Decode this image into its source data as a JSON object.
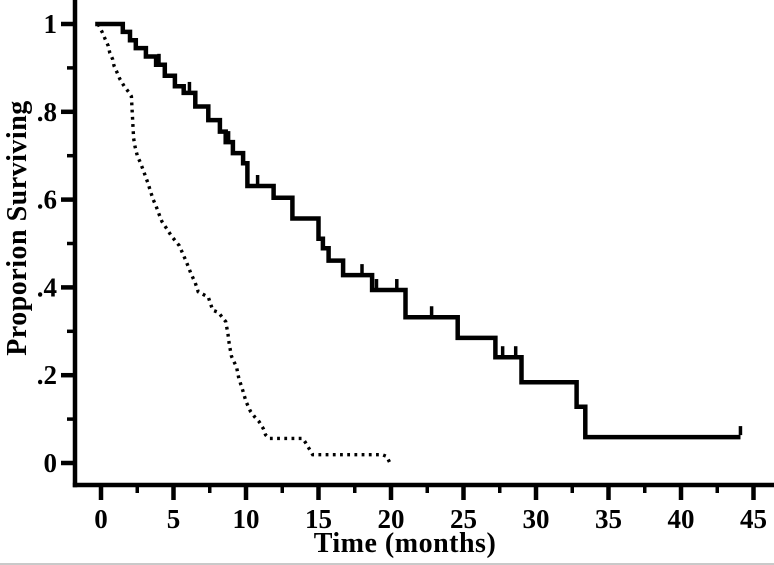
{
  "figure": {
    "background_color": "#ffffff",
    "ink_color": "#000000"
  },
  "chart_data": {
    "type": "line",
    "subtype": "kaplan-meier-survival-step",
    "title": "",
    "xlabel": "Time (months)",
    "ylabel": "Proporion Surviving",
    "grid": false,
    "legend": "none",
    "xlim": [
      -1.8,
      46.4
    ],
    "ylim": [
      -0.05,
      1.05
    ],
    "x_ticks": [
      0,
      5,
      10,
      15,
      20,
      25,
      30,
      35,
      40,
      45
    ],
    "x_minor_ticks": [
      2.5,
      7.5,
      12.5,
      17.5,
      22.5,
      27.5,
      32.5,
      37.5,
      42.5
    ],
    "y_ticks": [
      {
        "value": 1.0,
        "label": "1"
      },
      {
        "value": 0.8,
        "label": ".8"
      },
      {
        "value": 0.6,
        "label": ".6"
      },
      {
        "value": 0.4,
        "label": ".4"
      },
      {
        "value": 0.2,
        "label": ".2"
      },
      {
        "value": 0.0,
        "label": "0"
      }
    ],
    "y_minor_ticks": [
      0.9,
      0.7,
      0.5,
      0.3,
      0.1
    ],
    "series": [
      {
        "name": "solid-curve-group",
        "line_style": "solid",
        "steps": [
          [
            -0.4,
            1.0
          ],
          [
            1.5,
            1.0
          ],
          [
            1.5,
            0.982
          ],
          [
            2.0,
            0.982
          ],
          [
            2.0,
            0.963
          ],
          [
            2.4,
            0.963
          ],
          [
            2.4,
            0.945
          ],
          [
            3.1,
            0.945
          ],
          [
            3.1,
            0.926
          ],
          [
            3.8,
            0.926
          ],
          [
            3.8,
            0.907
          ],
          [
            4.4,
            0.907
          ],
          [
            4.4,
            0.882
          ],
          [
            5.1,
            0.882
          ],
          [
            5.1,
            0.858
          ],
          [
            5.7,
            0.858
          ],
          [
            5.7,
            0.843
          ],
          [
            6.5,
            0.843
          ],
          [
            6.5,
            0.812
          ],
          [
            7.4,
            0.812
          ],
          [
            7.4,
            0.781
          ],
          [
            8.2,
            0.781
          ],
          [
            8.2,
            0.755
          ],
          [
            8.6,
            0.755
          ],
          [
            8.6,
            0.731
          ],
          [
            9.1,
            0.731
          ],
          [
            9.1,
            0.706
          ],
          [
            9.8,
            0.706
          ],
          [
            9.8,
            0.683
          ],
          [
            10.1,
            0.683
          ],
          [
            10.1,
            0.631
          ],
          [
            11.9,
            0.631
          ],
          [
            11.9,
            0.604
          ],
          [
            13.2,
            0.604
          ],
          [
            13.2,
            0.557
          ],
          [
            15.0,
            0.557
          ],
          [
            15.0,
            0.511
          ],
          [
            15.3,
            0.511
          ],
          [
            15.3,
            0.489
          ],
          [
            15.7,
            0.489
          ],
          [
            15.7,
            0.461
          ],
          [
            16.7,
            0.461
          ],
          [
            16.7,
            0.428
          ],
          [
            18.7,
            0.428
          ],
          [
            18.7,
            0.394
          ],
          [
            21.0,
            0.394
          ],
          [
            21.0,
            0.332
          ],
          [
            24.6,
            0.332
          ],
          [
            24.6,
            0.285
          ],
          [
            27.2,
            0.285
          ],
          [
            27.2,
            0.241
          ],
          [
            29.0,
            0.241
          ],
          [
            29.0,
            0.184
          ],
          [
            32.8,
            0.184
          ],
          [
            32.8,
            0.128
          ],
          [
            33.4,
            0.128
          ],
          [
            33.4,
            0.059
          ],
          [
            44.1,
            0.059
          ]
        ],
        "censor_marks": [
          [
            4.0,
            0.907
          ],
          [
            6.1,
            0.843
          ],
          [
            8.8,
            0.731
          ],
          [
            10.8,
            0.631
          ],
          [
            18.0,
            0.428
          ],
          [
            19.0,
            0.394
          ],
          [
            20.4,
            0.394
          ],
          [
            22.8,
            0.332
          ],
          [
            27.7,
            0.241
          ],
          [
            28.6,
            0.241
          ],
          [
            44.1,
            0.059
          ]
        ]
      },
      {
        "name": "dotted-curve-group",
        "line_style": "dotted",
        "steps": [
          [
            -0.2,
            1.0
          ],
          [
            0.1,
            0.98
          ],
          [
            0.3,
            0.965
          ],
          [
            0.5,
            0.95
          ],
          [
            0.6,
            0.935
          ],
          [
            0.8,
            0.92
          ],
          [
            0.9,
            0.905
          ],
          [
            1.1,
            0.89
          ],
          [
            1.3,
            0.875
          ],
          [
            1.6,
            0.858
          ],
          [
            1.9,
            0.845
          ],
          [
            2.1,
            0.835
          ],
          [
            2.15,
            0.8
          ],
          [
            2.2,
            0.77
          ],
          [
            2.25,
            0.74
          ],
          [
            2.35,
            0.72
          ],
          [
            2.5,
            0.7
          ],
          [
            2.7,
            0.685
          ],
          [
            2.9,
            0.668
          ],
          [
            3.1,
            0.65
          ],
          [
            3.25,
            0.637
          ],
          [
            3.4,
            0.62
          ],
          [
            3.6,
            0.6
          ],
          [
            3.8,
            0.585
          ],
          [
            4.0,
            0.567
          ],
          [
            4.2,
            0.55
          ],
          [
            4.5,
            0.535
          ],
          [
            4.8,
            0.52
          ],
          [
            5.1,
            0.507
          ],
          [
            5.4,
            0.495
          ],
          [
            5.6,
            0.48
          ],
          [
            5.9,
            0.457
          ],
          [
            6.2,
            0.432
          ],
          [
            6.5,
            0.41
          ],
          [
            6.7,
            0.39
          ],
          [
            7.4,
            0.378
          ],
          [
            7.7,
            0.348
          ],
          [
            8.1,
            0.343
          ],
          [
            8.6,
            0.322
          ],
          [
            8.75,
            0.295
          ],
          [
            8.85,
            0.27
          ],
          [
            9.0,
            0.243
          ],
          [
            9.35,
            0.218
          ],
          [
            9.5,
            0.193
          ],
          [
            9.75,
            0.168
          ],
          [
            10.0,
            0.14
          ],
          [
            10.3,
            0.118
          ],
          [
            10.6,
            0.105
          ],
          [
            10.9,
            0.094
          ],
          [
            11.2,
            0.078
          ],
          [
            11.35,
            0.064
          ],
          [
            11.6,
            0.056
          ],
          [
            13.9,
            0.056
          ],
          [
            14.1,
            0.047
          ],
          [
            14.4,
            0.03
          ],
          [
            14.6,
            0.019
          ],
          [
            19.4,
            0.019
          ],
          [
            19.7,
            0.015
          ],
          [
            19.9,
            0.002
          ]
        ],
        "censor_marks": []
      }
    ]
  }
}
